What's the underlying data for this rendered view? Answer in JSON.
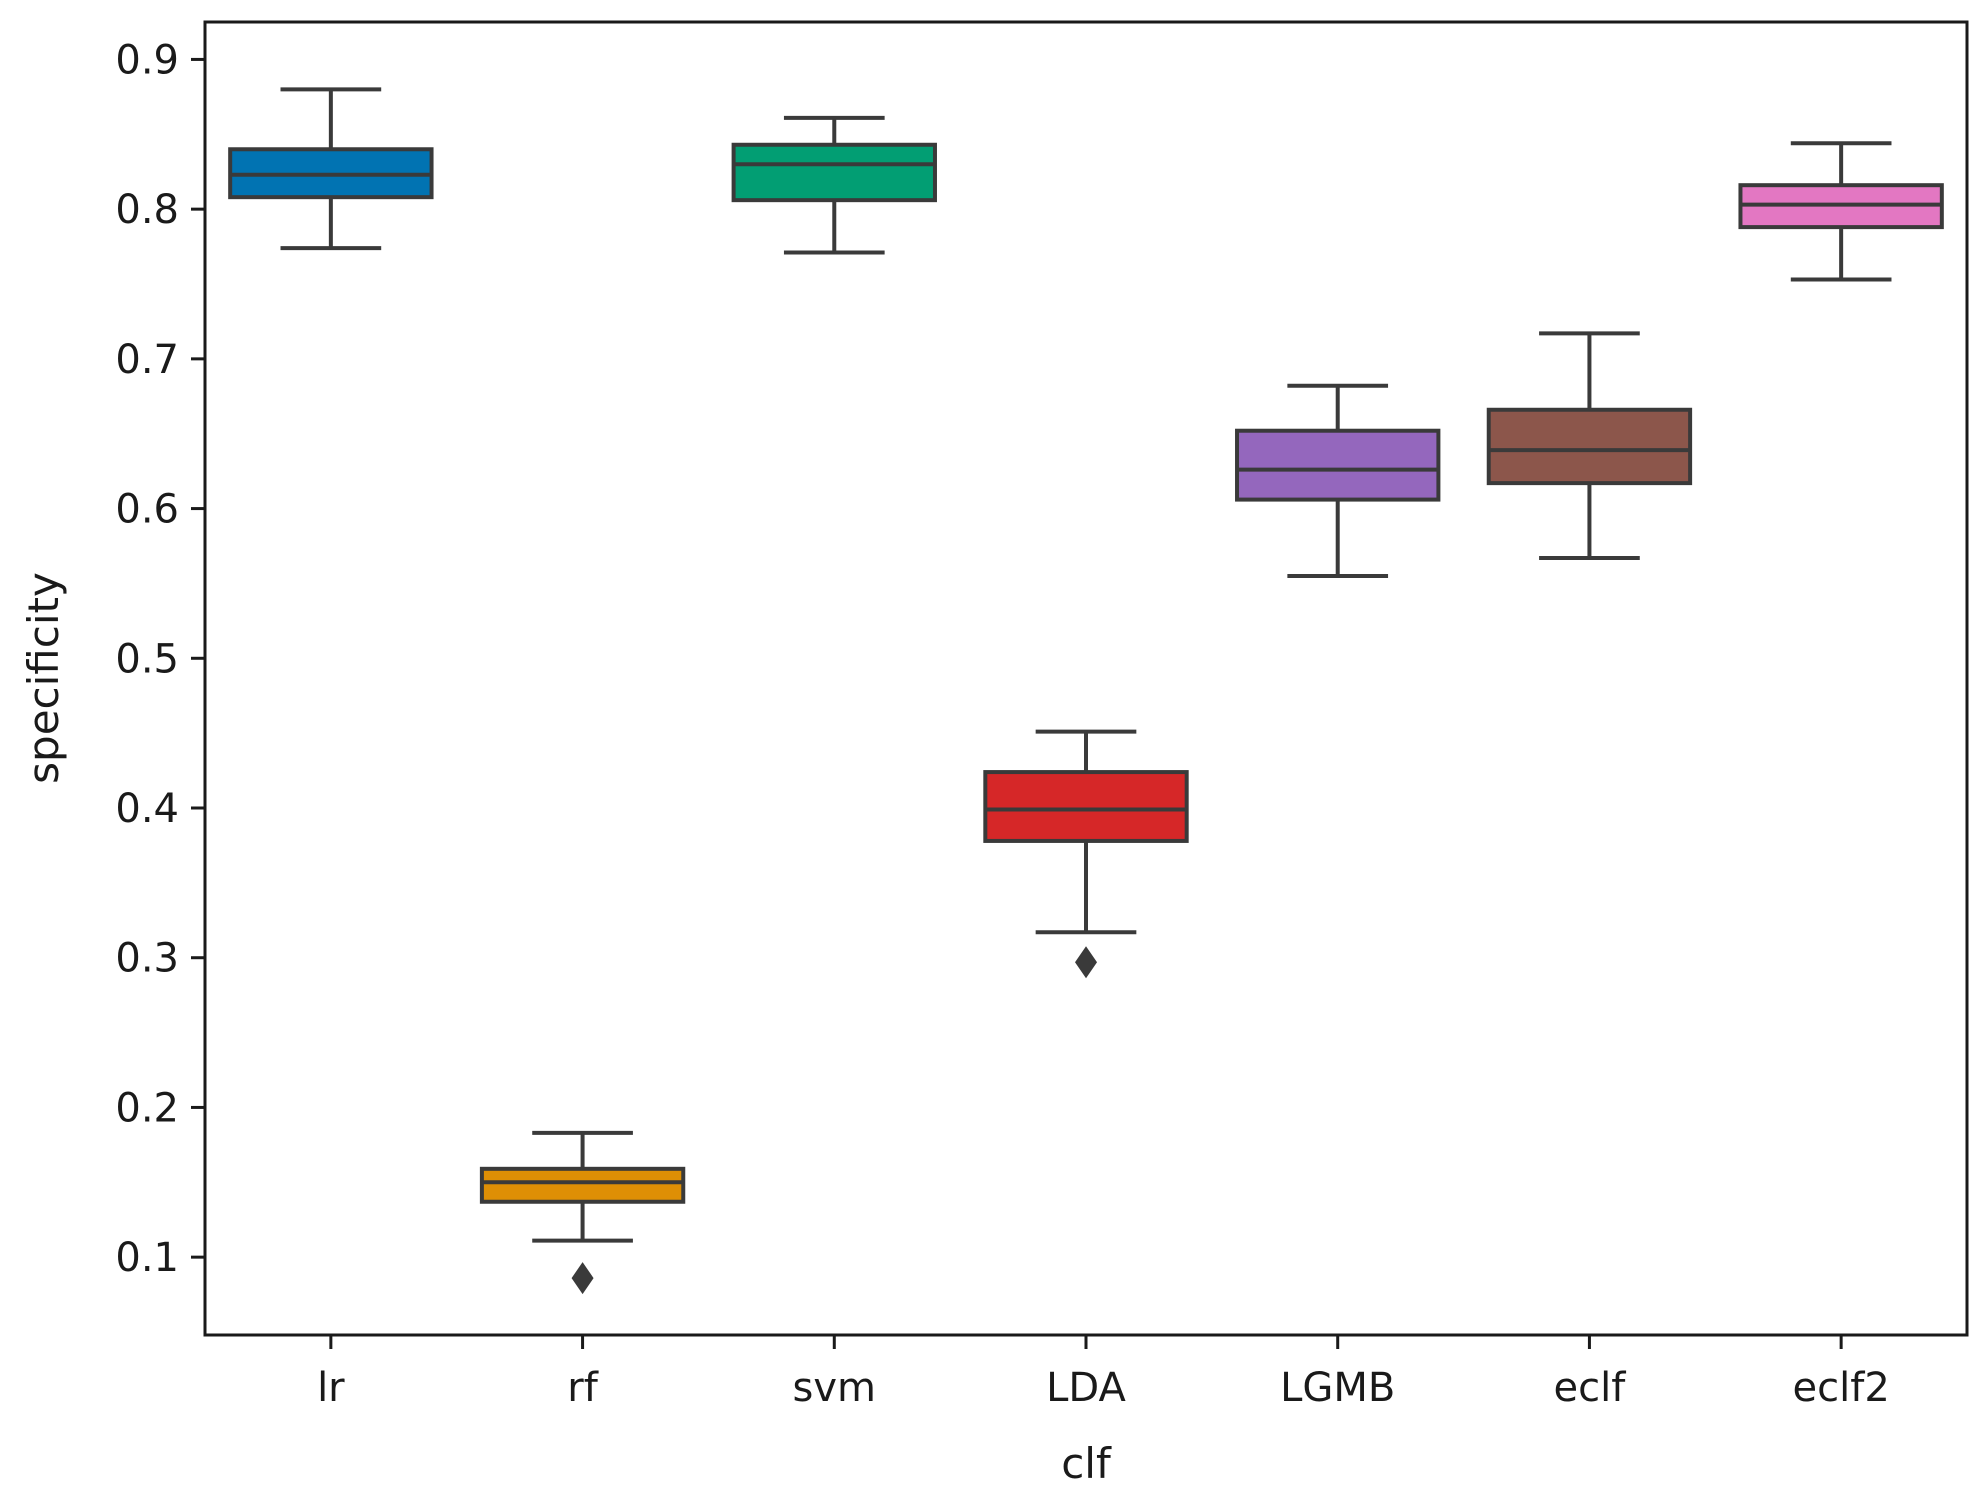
{
  "chart_data": {
    "type": "box",
    "xlabel": "clf",
    "ylabel": "specificity",
    "ylim": [
      0.048,
      0.925
    ],
    "yticks": [
      0.1,
      0.2,
      0.3,
      0.4,
      0.5,
      0.6,
      0.7,
      0.8,
      0.9
    ],
    "ytick_labels": [
      "0.1",
      "0.2",
      "0.3",
      "0.4",
      "0.5",
      "0.6",
      "0.7",
      "0.8",
      "0.9"
    ],
    "categories": [
      "lr",
      "rf",
      "svm",
      "LDA",
      "LGMB",
      "eclf",
      "eclf2"
    ],
    "boxes": [
      {
        "label": "lr",
        "whislo": 0.774,
        "q1": 0.808,
        "med": 0.823,
        "q3": 0.84,
        "whishi": 0.88,
        "fliers": [],
        "color": "#0173b2"
      },
      {
        "label": "rf",
        "whislo": 0.111,
        "q1": 0.137,
        "med": 0.15,
        "q3": 0.159,
        "whishi": 0.183,
        "fliers": [
          0.086
        ],
        "color": "#de8f05"
      },
      {
        "label": "svm",
        "whislo": 0.771,
        "q1": 0.806,
        "med": 0.83,
        "q3": 0.843,
        "whishi": 0.861,
        "fliers": [],
        "color": "#029e73"
      },
      {
        "label": "LDA",
        "whislo": 0.317,
        "q1": 0.378,
        "med": 0.399,
        "q3": 0.424,
        "whishi": 0.451,
        "fliers": [
          0.297
        ],
        "color": "#d62728"
      },
      {
        "label": "LGMB",
        "whislo": 0.555,
        "q1": 0.606,
        "med": 0.626,
        "q3": 0.652,
        "whishi": 0.682,
        "fliers": [],
        "color": "#9467bd"
      },
      {
        "label": "eclf",
        "whislo": 0.567,
        "q1": 0.617,
        "med": 0.639,
        "q3": 0.666,
        "whishi": 0.717,
        "fliers": [],
        "color": "#8c564b"
      },
      {
        "label": "eclf2",
        "whislo": 0.753,
        "q1": 0.788,
        "med": 0.803,
        "q3": 0.816,
        "whishi": 0.844,
        "fliers": [],
        "color": "#e377c2"
      }
    ],
    "line_color": "#3a3a3a",
    "grid": false,
    "legend": "none"
  }
}
